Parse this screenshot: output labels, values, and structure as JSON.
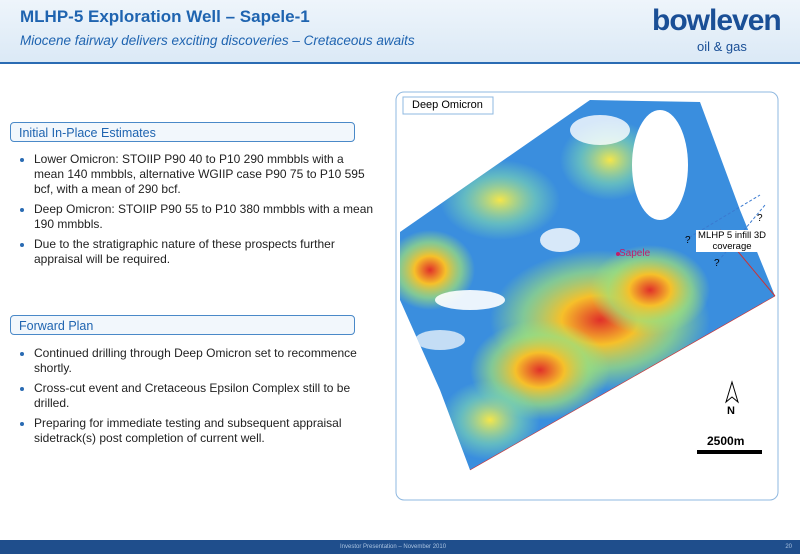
{
  "header": {
    "title": "MLHP-5 Exploration Well – Sapele-1",
    "subtitle": "Miocene fairway delivers exciting discoveries – Cretaceous awaits",
    "logo": {
      "name": "bowleven",
      "tagline": "oil & gas"
    }
  },
  "sections": [
    {
      "heading": "Initial In-Place Estimates",
      "bullets": [
        "Lower Omicron: STOIIP P90 40 to P10 290 mmbbls with a mean 140 mmbbls, alternative WGIIP case P90 75 to P10 595 bcf, with a mean of 290 bcf.",
        "Deep Omicron: STOIIP P90 55 to P10 380 mmbbls with a mean 190 mmbbls.",
        "Due to the stratigraphic nature of these prospects further appraisal will be required."
      ]
    },
    {
      "heading": "Forward Plan",
      "bullets": [
        "Continued drilling through Deep Omicron set to recommence shortly.",
        "Cross-cut event and Cretaceous Epsilon Complex still to be drilled.",
        "Preparing for immediate testing and subsequent appraisal sidetrack(s) post completion of current well."
      ]
    }
  ],
  "map": {
    "title": "Deep Omicron",
    "well": "Sapele",
    "coverage_label": "MLHP 5 infill 3D coverage",
    "question_marks": [
      "?",
      "?",
      "?"
    ],
    "north": "N",
    "scale": "2500m"
  },
  "footer": {
    "text": "Investor Presentation – November 2010",
    "page": "20"
  }
}
